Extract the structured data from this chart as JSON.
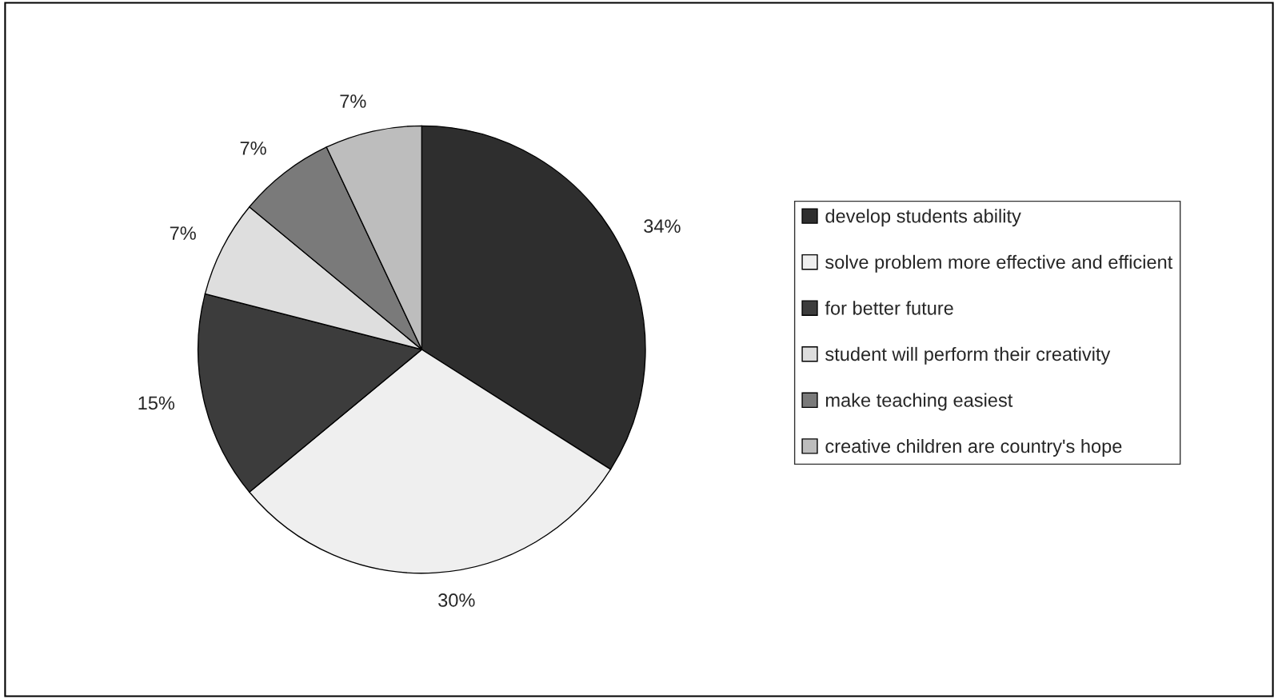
{
  "chart_data": {
    "type": "pie",
    "categories": [
      "develop students ability",
      "solve problem more effective and efficient",
      "for better future",
      "student will perform their creativity",
      "make teaching easiest",
      "creative children are country's hope"
    ],
    "values": [
      34,
      30,
      15,
      7,
      7,
      7
    ],
    "colors": [
      "#2e2e2e",
      "#efefef",
      "#3c3c3c",
      "#dedede",
      "#7a7a7a",
      "#bdbdbd"
    ],
    "value_labels": [
      "34%",
      "30%",
      "15%",
      "7%",
      "7%",
      "7%"
    ],
    "legend": "right"
  }
}
